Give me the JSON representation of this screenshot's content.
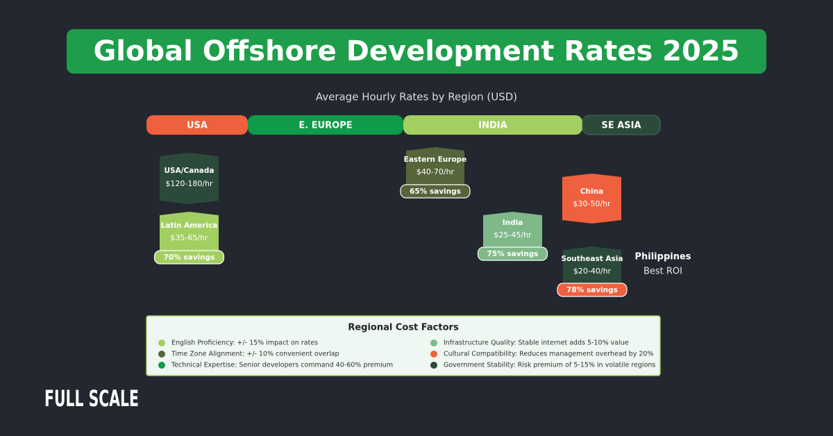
{
  "header": {
    "title": "Global Offshore Development Rates 2025",
    "subtitle": "Average Hourly Rates by Region (USD)"
  },
  "regions": [
    {
      "label": "USA",
      "color": "#f0603f"
    },
    {
      "label": "E. EUROPE",
      "color": "#0e9b4a"
    },
    {
      "label": "INDIA",
      "color": "#a3cf62"
    },
    {
      "label": "SE ASIA",
      "color": "#2b4a3a"
    }
  ],
  "cards": [
    {
      "name": "USA/Canada",
      "rate": "$120-180/hr",
      "color": "#2c4a3a"
    },
    {
      "name": "Latin America",
      "rate": "$35-65/hr",
      "color": "#a3cf62",
      "savings": "70% savings"
    },
    {
      "name": "Eastern Europe",
      "rate": "$40-70/hr",
      "color": "#56653a",
      "savings": "65% savings"
    },
    {
      "name": "India",
      "rate": "$25-45/hr",
      "color": "#7fb98a",
      "savings": "75% savings"
    },
    {
      "name": "China",
      "rate": "$30-50/hr",
      "color": "#f0603f"
    },
    {
      "name": "Southeast Asia",
      "rate": "$20-40/hr",
      "color": "#2c4a3a",
      "savings": "78% savings",
      "savings_color": "#f0603f"
    }
  ],
  "callout": {
    "name": "Philippines",
    "note": "Best ROI"
  },
  "factors": {
    "title": "Regional Cost Factors",
    "items": [
      {
        "text": "English Proficiency: +/- 15% impact on rates",
        "color": "#a3cf62"
      },
      {
        "text": "Time Zone Alignment: +/- 10% convenient overlap",
        "color": "#56653a"
      },
      {
        "text": "Technical Expertise: Senior developers command 40-60% premium",
        "color": "#0e9b4a"
      },
      {
        "text": "Infrastructure Quality: Stable internet adds 5-10% value",
        "color": "#7fb98a"
      },
      {
        "text": "Cultural Compatibility: Reduces management overhead by 20%",
        "color": "#f0603f"
      },
      {
        "text": "Government Stability: Risk premium of 5-15% in volatile regions",
        "color": "#2c4a3a"
      }
    ]
  },
  "logo": "FULL SCALE"
}
